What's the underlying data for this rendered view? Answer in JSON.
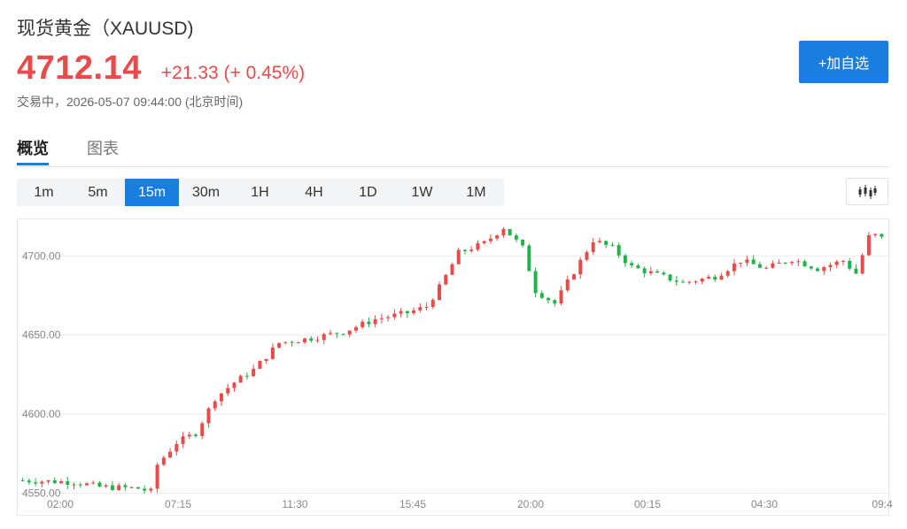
{
  "header": {
    "title": "现货黄金（XAUUSD)",
    "price": "4712.14",
    "change": "+21.33 (+ 0.45%)",
    "status": "交易中，2026-05-07 09:44:00 (北京时间)",
    "watch_button": "+加自选"
  },
  "tabs": [
    {
      "label": "概览",
      "active": true
    },
    {
      "label": "图表",
      "active": false
    }
  ],
  "periods": [
    {
      "label": "1m",
      "active": false
    },
    {
      "label": "5m",
      "active": false
    },
    {
      "label": "15m",
      "active": true
    },
    {
      "label": "30m",
      "active": false
    },
    {
      "label": "1H",
      "active": false
    },
    {
      "label": "4H",
      "active": false
    },
    {
      "label": "1D",
      "active": false
    },
    {
      "label": "1W",
      "active": false
    },
    {
      "label": "1M",
      "active": false
    }
  ],
  "chart_type_icon": "candlestick-icon",
  "colors": {
    "up": "#ea4a4a",
    "down": "#1fb34a",
    "accent": "#1a7ee0"
  },
  "chart_data": {
    "type": "candlestick",
    "y_ticks": [
      "4700.00",
      "4650.00",
      "4600.00",
      "4550.00"
    ],
    "y_tick_values": [
      4700,
      4650,
      4600,
      4550
    ],
    "x_ticks": [
      "02:00",
      "07:15",
      "11:30",
      "15:45",
      "20:00",
      "00:15",
      "04:30",
      "09:4"
    ],
    "ylim": [
      4543,
      4722
    ],
    "grid": true,
    "last_price": 4712.14,
    "waypoints": [
      [
        0,
        4558
      ],
      [
        8,
        4557
      ],
      [
        12,
        4554
      ],
      [
        18,
        4553
      ],
      [
        20,
        4551
      ],
      [
        21,
        4568
      ],
      [
        24,
        4582
      ],
      [
        27,
        4588
      ],
      [
        30,
        4610
      ],
      [
        33,
        4620
      ],
      [
        36,
        4628
      ],
      [
        40,
        4645
      ],
      [
        45,
        4648
      ],
      [
        50,
        4652
      ],
      [
        55,
        4660
      ],
      [
        60,
        4664
      ],
      [
        63,
        4668
      ],
      [
        65,
        4680
      ],
      [
        68,
        4702
      ],
      [
        72,
        4708
      ],
      [
        75,
        4718
      ],
      [
        78,
        4705
      ],
      [
        80,
        4678
      ],
      [
        83,
        4670
      ],
      [
        86,
        4690
      ],
      [
        89,
        4710
      ],
      [
        92,
        4705
      ],
      [
        95,
        4693
      ],
      [
        99,
        4688
      ],
      [
        103,
        4683
      ],
      [
        108,
        4687
      ],
      [
        112,
        4697
      ],
      [
        116,
        4692
      ],
      [
        120,
        4698
      ],
      [
        124,
        4692
      ],
      [
        128,
        4697
      ],
      [
        130,
        4689
      ],
      [
        132,
        4712
      ],
      [
        134,
        4714
      ]
    ]
  }
}
